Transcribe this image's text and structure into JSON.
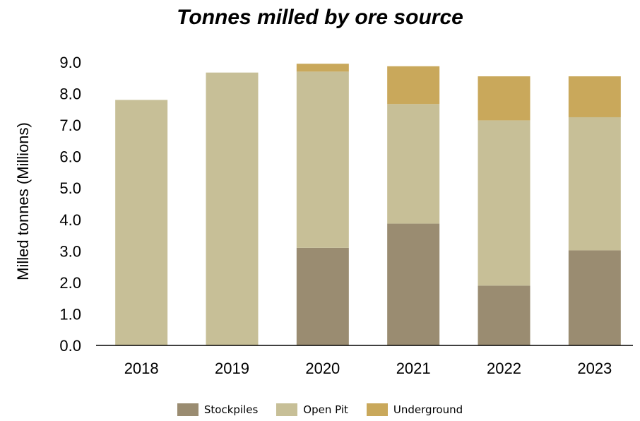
{
  "chart_data": {
    "type": "bar",
    "stacked": true,
    "title": "Tonnes milled by ore source",
    "xlabel": "",
    "ylabel": "Milled tonnes (Millions)",
    "ylim": [
      0,
      9
    ],
    "yticks": [
      "0.0",
      "1.0",
      "2.0",
      "3.0",
      "4.0",
      "5.0",
      "6.0",
      "7.0",
      "8.0",
      "9.0"
    ],
    "categories": [
      "2018",
      "2019",
      "2020",
      "2021",
      "2022",
      "2023"
    ],
    "series": [
      {
        "name": "Stockpiles",
        "color": "#9a8c71",
        "values": [
          0,
          0,
          3.1,
          3.87,
          1.9,
          3.02
        ]
      },
      {
        "name": "Open Pit",
        "color": "#c7bf97",
        "values": [
          7.8,
          8.67,
          5.6,
          3.8,
          5.25,
          4.23
        ]
      },
      {
        "name": "Underground",
        "color": "#c9a85b",
        "values": [
          0,
          0,
          0.25,
          1.2,
          1.4,
          1.3
        ]
      }
    ],
    "grid": false,
    "legend_position": "bottom"
  }
}
